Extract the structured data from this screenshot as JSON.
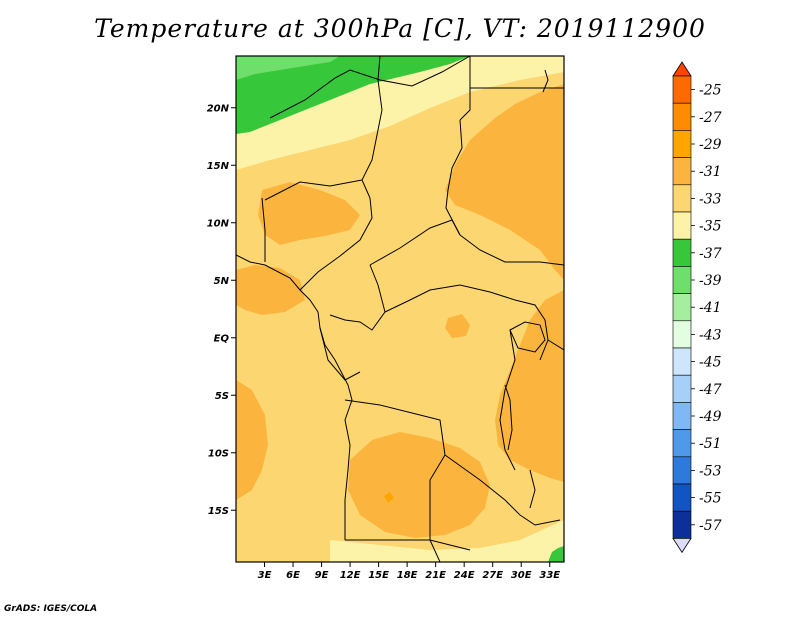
{
  "title": "Temperature at 300hPa [C], VT: 2019112900",
  "credit": "GrADS: IGES/COLA",
  "map": {
    "lon_range": [
      0,
      34.5
    ],
    "lat_range": [
      -19.5,
      24.5
    ],
    "x_ticks": [
      "3E",
      "6E",
      "9E",
      "12E",
      "15E",
      "18E",
      "21E",
      "24E",
      "27E",
      "30E",
      "33E"
    ],
    "x_tick_values": [
      3,
      6,
      9,
      12,
      15,
      18,
      21,
      24,
      27,
      30,
      33
    ],
    "y_ticks": [
      "20N",
      "15N",
      "10N",
      "5N",
      "EQ",
      "5S",
      "10S",
      "15S"
    ],
    "y_tick_values": [
      20,
      15,
      10,
      5,
      0,
      -5,
      -10,
      -15
    ]
  },
  "colorbar": {
    "labels": [
      "-25",
      "-27",
      "-29",
      "-31",
      "-33",
      "-35",
      "-37",
      "-39",
      "-41",
      "-43",
      "-45",
      "-47",
      "-49",
      "-51",
      "-53",
      "-55",
      "-57"
    ],
    "colors": [
      "#ff6a00",
      "#ff8c00",
      "#ffa500",
      "#fbb53f",
      "#fcd670",
      "#fdf3a8",
      "#36c73a",
      "#6ddf6a",
      "#a5ee9f",
      "#e2fde0",
      "#cde6fb",
      "#a6d0f7",
      "#7fb8f2",
      "#4f98ea",
      "#2d79dc",
      "#1254c4",
      "#0d2f9a",
      "#050d62",
      "#dcdcfa"
    ],
    "top_arrow_color": "#ff4500",
    "bottom_arrow_color": "#dcdcfa"
  },
  "legend": {
    "colors": {
      "cool": "#fdf3a8",
      "light": "#fcd670",
      "warm": "#fbb53f",
      "green": "#36c73a",
      "lightgreen": "#6ddf6a",
      "border": "#000000"
    }
  }
}
